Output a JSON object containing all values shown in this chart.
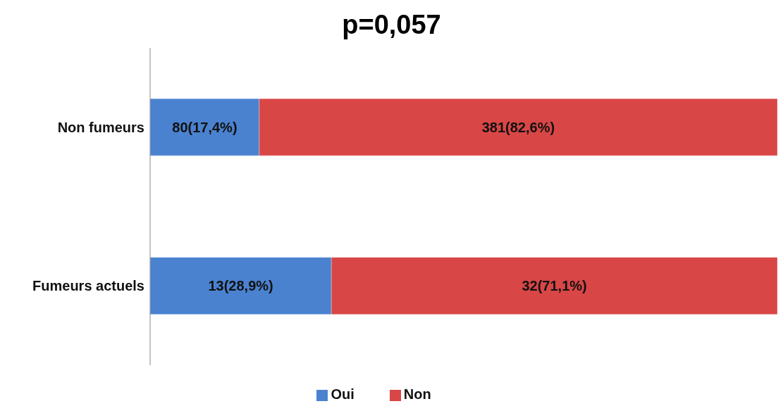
{
  "chart_data": {
    "type": "bar",
    "title": "p=0,057",
    "orientation": "horizontal",
    "stacked": true,
    "xlim": [
      0,
      100
    ],
    "tick_labels": false,
    "categories": [
      "Non fumeurs",
      "Fumeurs actuels"
    ],
    "legend": "bottom",
    "series": [
      {
        "name": "Oui",
        "color": "#4a82d0",
        "values": [
          17.4,
          28.9
        ],
        "value_labels": [
          "80(17,4%)",
          "13(28,9%)"
        ]
      },
      {
        "name": "Non",
        "color": "#d94646",
        "values": [
          82.6,
          71.1
        ],
        "value_labels": [
          "381(82,6%)",
          "32(71,1%)"
        ]
      }
    ]
  }
}
